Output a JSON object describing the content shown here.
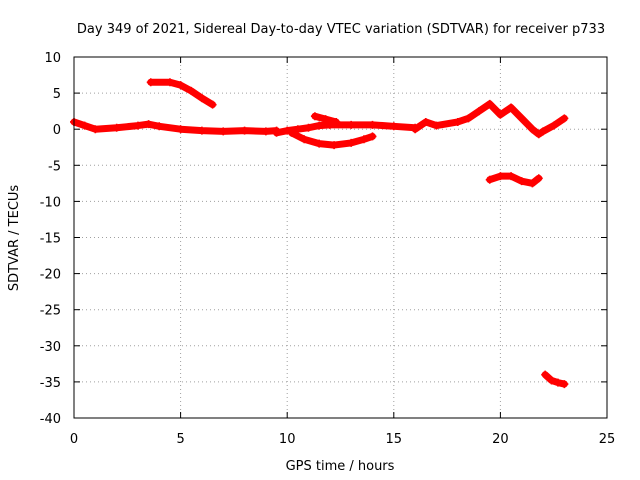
{
  "chart_data": {
    "type": "scatter",
    "title": "Day 349 of 2021, Sidereal Day-to-day VTEC variation (SDTVAR) for receiver p733",
    "xlabel": "GPS time / hours",
    "ylabel": "SDTVAR / TECUs",
    "xlim": [
      0,
      25
    ],
    "ylim": [
      -40,
      10
    ],
    "xticks": [
      0,
      5,
      10,
      15,
      20,
      25
    ],
    "yticks": [
      10,
      5,
      0,
      -5,
      -10,
      -15,
      -20,
      -25,
      -30,
      -35,
      -40
    ],
    "xtick_labels": [
      "0",
      "5",
      "10",
      "15",
      "20",
      "25"
    ],
    "ytick_labels": [
      "10",
      "5",
      "0",
      "-5",
      "-10",
      "-15",
      "-20",
      "-25",
      "-30",
      "-35",
      "-40"
    ],
    "grid": true,
    "marker": "plus",
    "color": "#ff0000",
    "series": [
      {
        "name": "arc-main-1",
        "x": [
          0,
          0.5,
          1,
          2,
          3,
          3.5,
          4,
          5,
          6,
          7,
          8,
          9,
          9.5
        ],
        "y": [
          1.0,
          0.5,
          0.0,
          0.2,
          0.5,
          0.7,
          0.4,
          0.0,
          -0.2,
          -0.3,
          -0.2,
          -0.3,
          -0.2
        ]
      },
      {
        "name": "arc-high-early",
        "x": [
          3.6,
          4.5,
          5.0,
          5.5,
          6.0,
          6.5
        ],
        "y": [
          6.5,
          6.5,
          6.1,
          5.3,
          4.3,
          3.4
        ]
      },
      {
        "name": "arc-dip-mid",
        "x": [
          10.2,
          10.8,
          11.5,
          12.2,
          13.0,
          13.6,
          14.0
        ],
        "y": [
          -0.5,
          -1.4,
          -2.0,
          -2.2,
          -1.9,
          -1.4,
          -1.0
        ]
      },
      {
        "name": "arc-main-2",
        "x": [
          9.5,
          10,
          10.5,
          11,
          11.5,
          12,
          13,
          14,
          15,
          16
        ],
        "y": [
          -0.5,
          -0.2,
          0.0,
          0.2,
          0.5,
          0.6,
          0.6,
          0.6,
          0.4,
          0.2
        ]
      },
      {
        "name": "arc-hump",
        "x": [
          11.3,
          11.8,
          12.3
        ],
        "y": [
          1.8,
          1.4,
          1.0
        ]
      },
      {
        "name": "arc-late",
        "x": [
          16.0,
          16.5,
          17.0,
          18.0,
          18.5,
          19.0,
          19.5,
          20.0,
          20.5,
          21.0,
          21.5,
          21.8,
          22.0,
          22.5,
          23.0
        ],
        "y": [
          0.0,
          1.0,
          0.5,
          1.0,
          1.5,
          2.5,
          3.5,
          2.0,
          3.0,
          1.5,
          0.0,
          -0.7,
          -0.3,
          0.5,
          1.5
        ]
      },
      {
        "name": "arc-neg7",
        "x": [
          19.5,
          20.0,
          20.5,
          21.0,
          21.5,
          21.8
        ],
        "y": [
          -7.0,
          -6.5,
          -6.5,
          -7.2,
          -7.5,
          -6.8
        ]
      },
      {
        "name": "arc-neg35",
        "x": [
          22.1,
          22.4,
          22.7,
          23.0
        ],
        "y": [
          -34.0,
          -34.8,
          -35.1,
          -35.3
        ]
      }
    ]
  }
}
